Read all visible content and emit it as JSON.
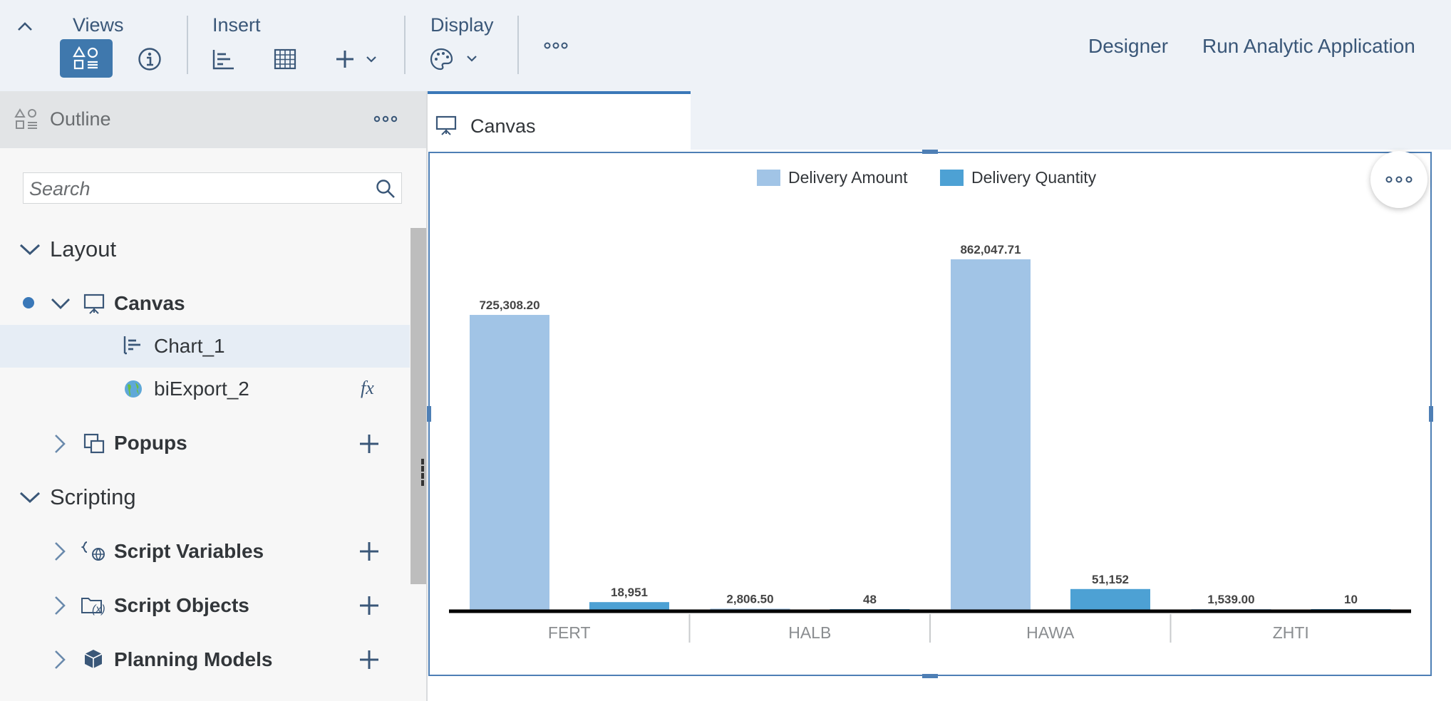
{
  "toolbar": {
    "views_label": "Views",
    "insert_label": "Insert",
    "display_label": "Display",
    "designer_label": "Designer",
    "run_label": "Run Analytic Application"
  },
  "outline": {
    "title": "Outline",
    "search_placeholder": "Search",
    "layout_label": "Layout",
    "canvas_label": "Canvas",
    "chart_label": "Chart_1",
    "export_label": "biExport_2",
    "fx_label": "fx",
    "popups_label": "Popups",
    "scripting_label": "Scripting",
    "script_variables_label": "Script Variables",
    "script_objects_label": "Script Objects",
    "planning_models_label": "Planning Models"
  },
  "tab": {
    "label": "Canvas"
  },
  "colors": {
    "accent": "#3a78b8",
    "amount": "#a1c4e6",
    "quantity": "#4da1d4"
  },
  "chart_data": {
    "type": "bar",
    "categories": [
      "FERT",
      "HALB",
      "HAWA",
      "ZHTI"
    ],
    "series": [
      {
        "name": "Delivery Amount",
        "values": [
          725308.2,
          2806.5,
          862047.71,
          1539.0
        ],
        "labels": [
          "725,308.20",
          "2,806.50",
          "862,047.71",
          "1,539.00"
        ],
        "color": "#a1c4e6"
      },
      {
        "name": "Delivery Quantity",
        "values": [
          18951,
          48,
          51152,
          10
        ],
        "labels": [
          "18,951",
          "48",
          "51,152",
          "10"
        ],
        "color": "#4da1d4"
      }
    ],
    "legend_position": "top-center",
    "ylim": [
      0,
      862047.71
    ],
    "grid": false
  }
}
